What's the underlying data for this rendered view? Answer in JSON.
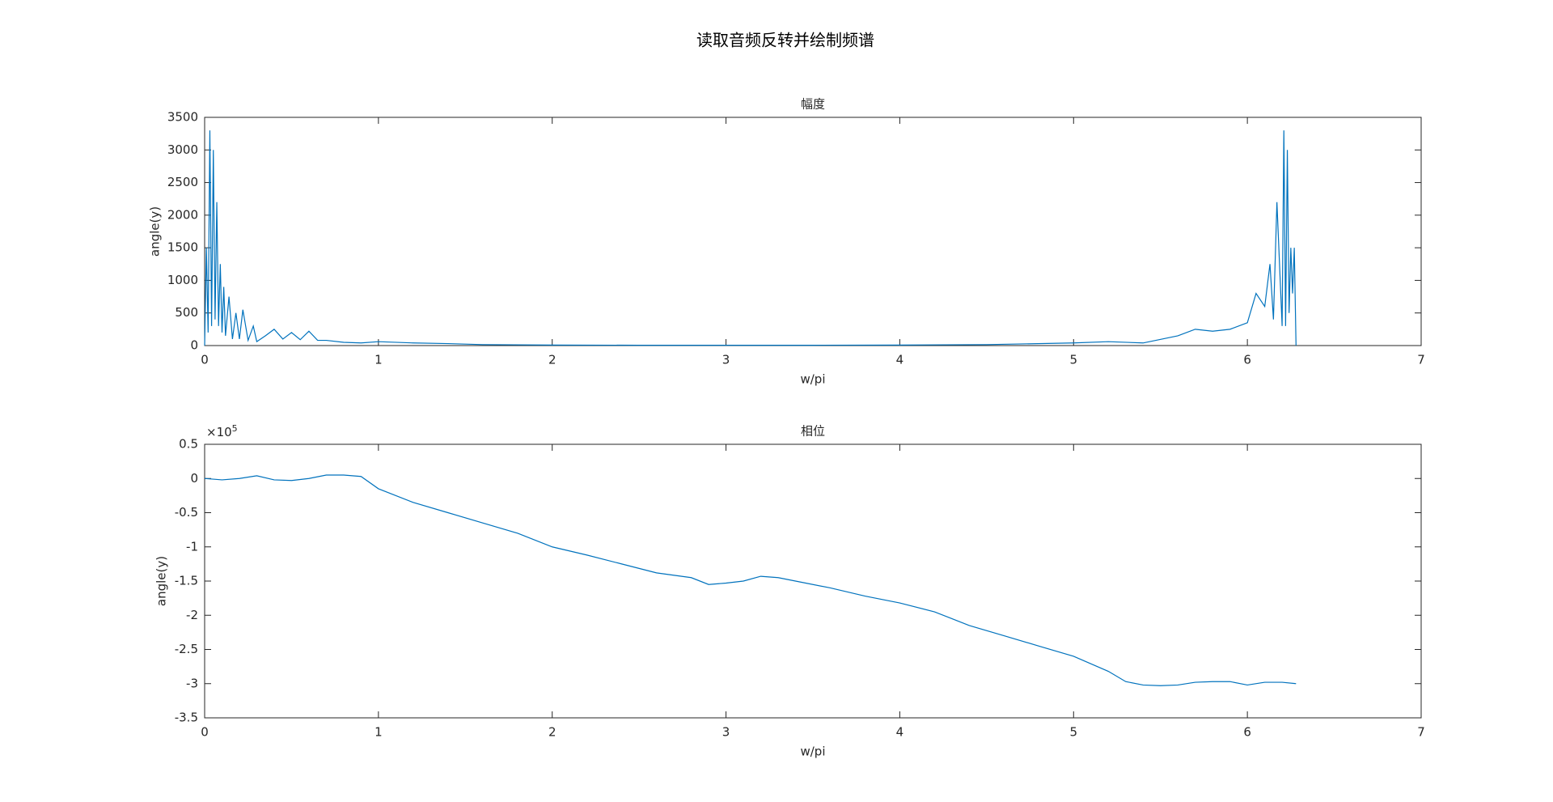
{
  "title": "读取音频反转并绘制频谱",
  "chart_data": [
    {
      "type": "line",
      "title": "幅度",
      "xlabel": "w/pi",
      "ylabel": "angle(y)",
      "xlim": [
        0,
        7
      ],
      "xticks": [
        0,
        1,
        2,
        3,
        4,
        5,
        6,
        7
      ],
      "ylim": [
        0,
        3500
      ],
      "yticks": [
        0,
        500,
        1000,
        1500,
        2000,
        2500,
        3000,
        3500
      ],
      "color": "#0072bd",
      "x": [
        0,
        0.01,
        0.02,
        0.03,
        0.04,
        0.05,
        0.06,
        0.07,
        0.08,
        0.09,
        0.1,
        0.11,
        0.12,
        0.14,
        0.16,
        0.18,
        0.2,
        0.22,
        0.25,
        0.28,
        0.3,
        0.35,
        0.4,
        0.45,
        0.5,
        0.55,
        0.6,
        0.65,
        0.7,
        0.8,
        0.9,
        1,
        1.2,
        1.4,
        1.6,
        2,
        2.5,
        3,
        3.14,
        3.5,
        4,
        4.5,
        5,
        5.2,
        5.4,
        5.6,
        5.7,
        5.8,
        5.9,
        6,
        6.05,
        6.1,
        6.13,
        6.15,
        6.17,
        6.2,
        6.21,
        6.22,
        6.23,
        6.24,
        6.25,
        6.26,
        6.27,
        6.28
      ],
      "values": [
        0,
        1500,
        200,
        3300,
        300,
        3000,
        400,
        2200,
        300,
        1250,
        200,
        900,
        150,
        750,
        100,
        500,
        100,
        550,
        80,
        300,
        60,
        150,
        250,
        100,
        200,
        90,
        220,
        80,
        80,
        50,
        40,
        60,
        40,
        30,
        15,
        8,
        5,
        5,
        5,
        5,
        8,
        15,
        40,
        60,
        40,
        150,
        250,
        220,
        250,
        350,
        800,
        600,
        1250,
        400,
        2200,
        300,
        3300,
        300,
        3000,
        500,
        1500,
        800,
        1500,
        0
      ]
    },
    {
      "type": "line",
      "title": "相位",
      "xlabel": "w/pi",
      "ylabel": "angle(y)",
      "y_multiplier": "×10",
      "y_exponent": 5,
      "xlim": [
        0,
        7
      ],
      "xticks": [
        0,
        1,
        2,
        3,
        4,
        5,
        6,
        7
      ],
      "ylim": [
        -3.5,
        0.5
      ],
      "yticks": [
        -3.5,
        -3,
        -2.5,
        -2,
        -1.5,
        -1,
        -0.5,
        0,
        0.5
      ],
      "color": "#0072bd",
      "x": [
        0,
        0.1,
        0.2,
        0.3,
        0.4,
        0.5,
        0.6,
        0.7,
        0.8,
        0.9,
        1,
        1.2,
        1.4,
        1.6,
        1.8,
        2,
        2.2,
        2.4,
        2.6,
        2.8,
        2.9,
        3,
        3.1,
        3.2,
        3.3,
        3.4,
        3.6,
        3.8,
        4,
        4.2,
        4.4,
        4.6,
        4.8,
        5,
        5.2,
        5.3,
        5.4,
        5.5,
        5.6,
        5.7,
        5.8,
        5.9,
        6,
        6.1,
        6.2,
        6.28
      ],
      "values": [
        0,
        -0.02,
        0,
        0.04,
        -0.02,
        -0.03,
        0,
        0.05,
        0.05,
        0.03,
        -0.15,
        -0.35,
        -0.5,
        -0.65,
        -0.8,
        -1,
        -1.12,
        -1.25,
        -1.38,
        -1.45,
        -1.55,
        -1.53,
        -1.5,
        -1.43,
        -1.45,
        -1.5,
        -1.6,
        -1.72,
        -1.82,
        -1.95,
        -2.15,
        -2.3,
        -2.45,
        -2.6,
        -2.82,
        -2.97,
        -3.02,
        -3.03,
        -3.02,
        -2.98,
        -2.97,
        -2.97,
        -3.02,
        -2.98,
        -2.98,
        -3
      ]
    }
  ]
}
